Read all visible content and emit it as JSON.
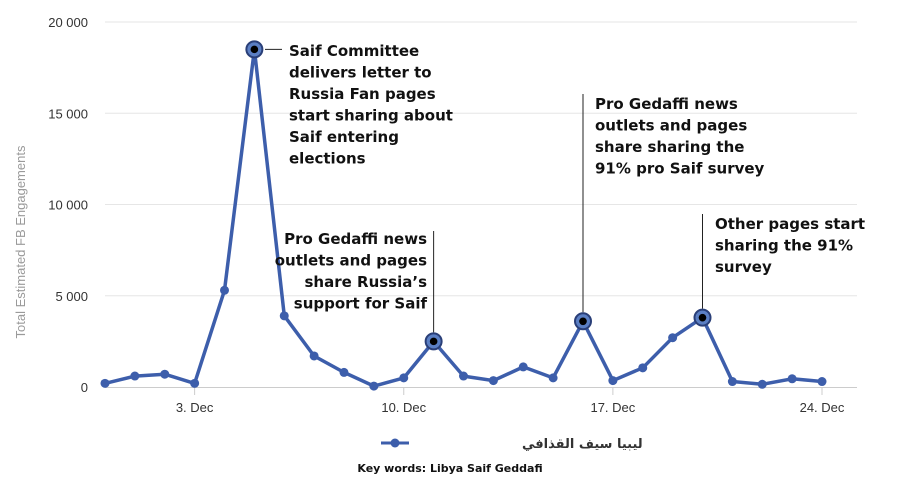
{
  "chart_data": {
    "type": "line",
    "ylabel": "Total Estimated FB Engagements",
    "ylim": [
      0,
      20000
    ],
    "y_ticks": [
      0,
      5000,
      10000,
      15000,
      20000
    ],
    "y_tick_labels": [
      "0",
      "5 000",
      "10 000",
      "15 000",
      "20 000"
    ],
    "x_tick_labels": [
      {
        "index": 3,
        "label": "3. Dec"
      },
      {
        "index": 10,
        "label": "10. Dec"
      },
      {
        "index": 17,
        "label": "17. Dec"
      },
      {
        "index": 24,
        "label": "24. Dec"
      }
    ],
    "grid": "horizontal",
    "color": "#3d5eab",
    "series": [
      {
        "name": "ليبيا سيف القذافي",
        "values": [
          200,
          600,
          700,
          200,
          5300,
          18500,
          3900,
          1700,
          800,
          50,
          500,
          2500,
          600,
          350,
          1100,
          500,
          3600,
          350,
          1050,
          2700,
          3800,
          300,
          150,
          450,
          300
        ]
      }
    ],
    "annotations": [
      {
        "index": 5,
        "lines": [
          "Saif Committee",
          "delivers letter to",
          "Russia Fan pages",
          "start sharing about",
          "Saif entering",
          "elections"
        ]
      },
      {
        "index": 11,
        "lines": [
          "Pro Gedaffi news",
          "outlets and pages",
          "share Russia’s",
          "support for Saif"
        ]
      },
      {
        "index": 16,
        "lines": [
          "Pro Gedaffi news",
          "outlets and pages",
          "share sharing the",
          "91% pro Saif survey"
        ]
      },
      {
        "index": 20,
        "lines": [
          "Other pages start",
          "sharing the 91%",
          "survey"
        ]
      }
    ],
    "legend": "bottom-center",
    "caption": "Key words: Libya Saif Geddafi"
  }
}
